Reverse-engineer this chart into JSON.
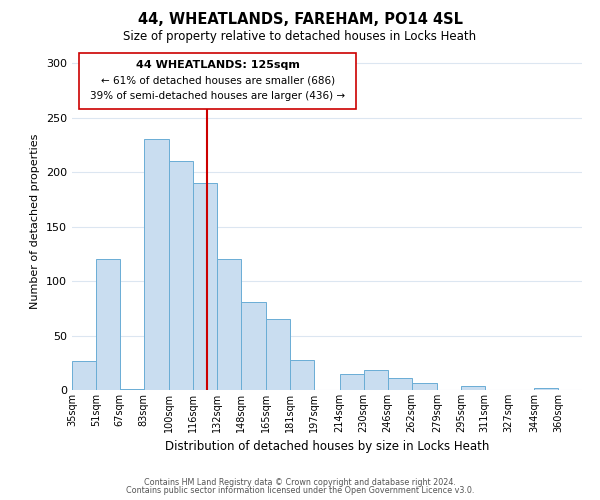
{
  "title": "44, WHEATLANDS, FAREHAM, PO14 4SL",
  "subtitle": "Size of property relative to detached houses in Locks Heath",
  "xlabel": "Distribution of detached houses by size in Locks Heath",
  "ylabel": "Number of detached properties",
  "footer_lines": [
    "Contains HM Land Registry data © Crown copyright and database right 2024.",
    "Contains public sector information licensed under the Open Government Licence v3.0."
  ],
  "bar_left_edges": [
    35,
    51,
    67,
    83,
    100,
    116,
    132,
    148,
    165,
    181,
    197,
    214,
    230,
    246,
    262,
    279,
    295,
    311,
    327,
    344
  ],
  "bar_widths": [
    16,
    16,
    16,
    17,
    16,
    16,
    16,
    17,
    16,
    16,
    17,
    16,
    16,
    16,
    17,
    16,
    16,
    16,
    17,
    16
  ],
  "bar_heights": [
    27,
    120,
    1,
    231,
    210,
    190,
    120,
    81,
    65,
    28,
    0,
    15,
    18,
    11,
    6,
    0,
    4,
    0,
    0,
    2
  ],
  "bar_color": "#c9ddf0",
  "bar_edge_color": "#6aadd5",
  "xlim": [
    35,
    376
  ],
  "ylim": [
    0,
    310
  ],
  "yticks": [
    0,
    50,
    100,
    150,
    200,
    250,
    300
  ],
  "xtick_labels": [
    "35sqm",
    "51sqm",
    "67sqm",
    "83sqm",
    "100sqm",
    "116sqm",
    "132sqm",
    "148sqm",
    "165sqm",
    "181sqm",
    "197sqm",
    "214sqm",
    "230sqm",
    "246sqm",
    "262sqm",
    "279sqm",
    "295sqm",
    "311sqm",
    "327sqm",
    "344sqm",
    "360sqm"
  ],
  "xtick_positions": [
    35,
    51,
    67,
    83,
    100,
    116,
    132,
    148,
    165,
    181,
    197,
    214,
    230,
    246,
    262,
    279,
    295,
    311,
    327,
    344,
    360
  ],
  "property_line_x": 125,
  "property_line_color": "#cc0000",
  "annotation_title": "44 WHEATLANDS: 125sqm",
  "annotation_line1": "← 61% of detached houses are smaller (686)",
  "annotation_line2": "39% of semi-detached houses are larger (436) →",
  "annotation_box_color": "#ffffff",
  "annotation_box_edge_color": "#cc0000",
  "grid_color": "#dce6f1",
  "background_color": "#ffffff"
}
